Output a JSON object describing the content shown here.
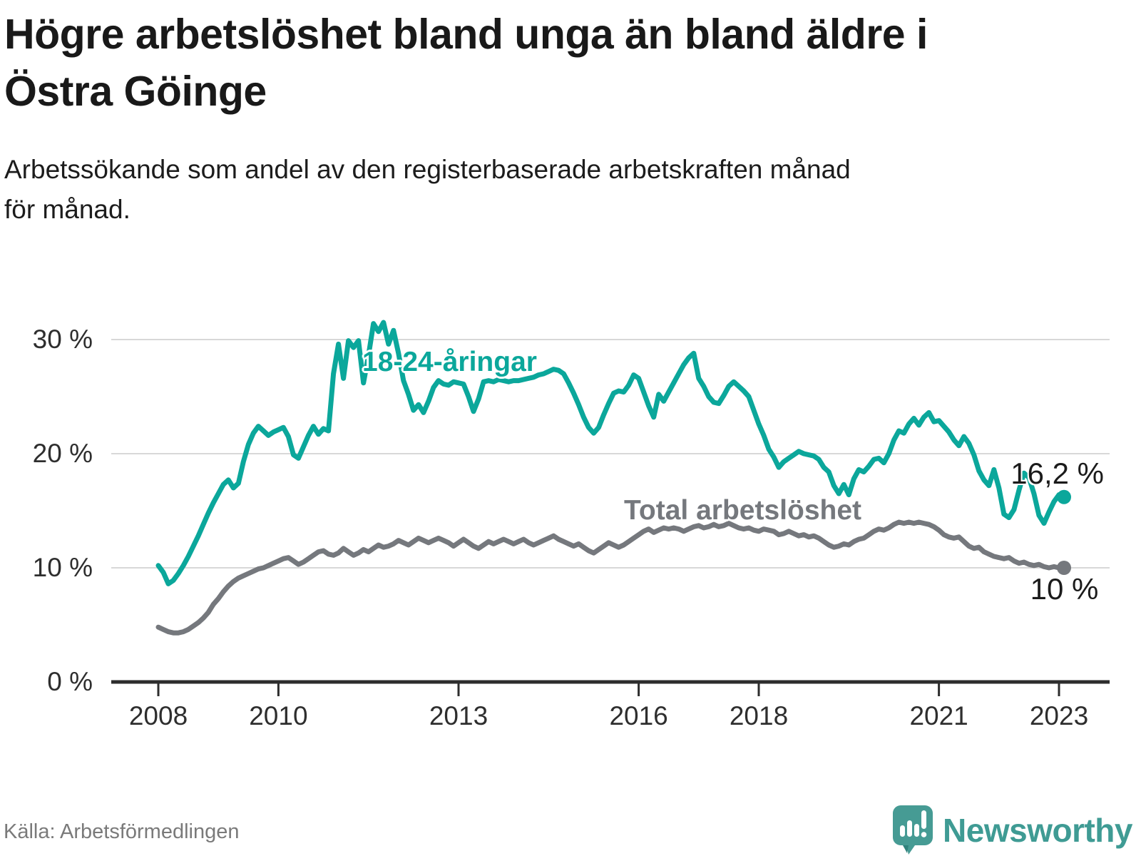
{
  "header": {
    "title": "Högre arbetslöshet bland unga än bland äldre i Östra Göinge",
    "title_lines": [
      "Högre arbetslöshet bland unga än bland äldre i",
      "Östra Göinge"
    ],
    "subtitle": "Arbetssökande som andel av den registerbaserade arbetskraften månad för månad.",
    "subtitle_lines": [
      "Arbetssökande som andel av den registerbaserade arbetskraften månad",
      "för månad."
    ]
  },
  "source": {
    "label": "Källa: Arbetsförmedlingen"
  },
  "branding": {
    "name": "Newsworthy",
    "icon": "speech-bubble-bar-chart-icon",
    "color": "#3F9B94"
  },
  "colors": {
    "youth_line": "#0BA79B",
    "total_line": "#75787D",
    "grid": "#D8D8D8",
    "axis": "#2D2D2D",
    "text": "#1A1A1A",
    "muted_text": "#7A7A7A"
  },
  "chart_data": {
    "type": "line",
    "unit": "%",
    "frequency": "monthly",
    "x_start": "2008-01",
    "x_end": "2023-02",
    "ylim": [
      0,
      33
    ],
    "yticks": [
      0,
      10,
      20,
      30
    ],
    "ytick_labels": [
      "0 %",
      "10 %",
      "20 %",
      "30 %"
    ],
    "xticks": [
      2008,
      2010,
      2013,
      2016,
      2018,
      2021,
      2023
    ],
    "xtick_labels": [
      "2008",
      "2010",
      "2013",
      "2016",
      "2018",
      "2021",
      "2023"
    ],
    "grid": "horizontal",
    "legend_position": "inline-labels",
    "series": [
      {
        "name": "18-24-åringar",
        "color": "#0BA79B",
        "end_label": "16,2 %",
        "end_value": 16.2,
        "values": [
          10.2,
          9.6,
          8.6,
          8.9,
          9.5,
          10.2,
          11.0,
          11.9,
          12.8,
          13.8,
          14.8,
          15.7,
          16.5,
          17.3,
          17.7,
          17.0,
          17.4,
          19.3,
          20.8,
          21.8,
          22.4,
          22.0,
          21.6,
          21.9,
          22.1,
          22.3,
          21.5,
          19.9,
          19.6,
          20.6,
          21.6,
          22.4,
          21.7,
          22.2,
          22.0,
          27.0,
          29.6,
          26.6,
          29.9,
          29.3,
          29.9,
          26.2,
          28.6,
          31.4,
          30.7,
          31.5,
          29.6,
          30.8,
          28.8,
          26.4,
          25.2,
          23.8,
          24.3,
          23.6,
          24.6,
          25.8,
          26.4,
          26.1,
          26.0,
          26.3,
          26.2,
          26.1,
          25.0,
          23.7,
          24.8,
          26.3,
          26.4,
          26.3,
          26.5,
          26.4,
          26.3,
          26.4,
          26.4,
          26.5,
          26.6,
          26.7,
          26.9,
          27.0,
          27.2,
          27.4,
          27.3,
          27.0,
          26.2,
          25.3,
          24.3,
          23.2,
          22.3,
          21.8,
          22.3,
          23.4,
          24.4,
          25.3,
          25.5,
          25.4,
          26.0,
          26.9,
          26.6,
          25.4,
          24.2,
          23.2,
          25.2,
          24.6,
          25.4,
          26.2,
          27.0,
          27.8,
          28.4,
          28.8,
          26.6,
          25.9,
          25.0,
          24.5,
          24.4,
          25.1,
          25.9,
          26.3,
          25.9,
          25.5,
          25.0,
          23.8,
          22.6,
          21.6,
          20.4,
          19.7,
          18.8,
          19.3,
          19.6,
          19.9,
          20.2,
          20.0,
          19.9,
          19.8,
          19.5,
          18.8,
          18.4,
          17.2,
          16.5,
          17.3,
          16.4,
          17.8,
          18.6,
          18.4,
          18.9,
          19.5,
          19.6,
          19.2,
          20.0,
          21.2,
          22.0,
          21.8,
          22.6,
          23.1,
          22.5,
          23.2,
          23.6,
          22.8,
          22.9,
          22.4,
          21.9,
          21.2,
          20.7,
          21.5,
          20.9,
          19.9,
          18.5,
          17.7,
          17.2,
          18.6,
          17.0,
          14.7,
          14.4,
          15.1,
          16.8,
          18.3,
          17.9,
          16.5,
          14.6,
          13.9,
          14.9,
          15.8,
          16.4,
          16.2
        ]
      },
      {
        "name": "Total arbetslöshet",
        "color": "#75787D",
        "end_label": "10 %",
        "end_value": 10.0,
        "values": [
          4.8,
          4.6,
          4.4,
          4.3,
          4.3,
          4.4,
          4.6,
          4.9,
          5.2,
          5.6,
          6.1,
          6.8,
          7.3,
          7.9,
          8.4,
          8.8,
          9.1,
          9.3,
          9.5,
          9.7,
          9.9,
          10.0,
          10.2,
          10.4,
          10.6,
          10.8,
          10.9,
          10.6,
          10.3,
          10.5,
          10.8,
          11.1,
          11.4,
          11.5,
          11.2,
          11.1,
          11.3,
          11.7,
          11.4,
          11.1,
          11.3,
          11.6,
          11.4,
          11.7,
          12.0,
          11.8,
          11.9,
          12.1,
          12.4,
          12.2,
          12.0,
          12.3,
          12.6,
          12.4,
          12.2,
          12.4,
          12.6,
          12.4,
          12.2,
          11.9,
          12.2,
          12.5,
          12.2,
          11.9,
          11.7,
          12.0,
          12.3,
          12.1,
          12.3,
          12.5,
          12.3,
          12.1,
          12.3,
          12.5,
          12.2,
          12.0,
          12.2,
          12.4,
          12.6,
          12.8,
          12.5,
          12.3,
          12.1,
          11.9,
          12.1,
          11.8,
          11.5,
          11.3,
          11.6,
          11.9,
          12.2,
          12.0,
          11.8,
          12.0,
          12.3,
          12.6,
          12.9,
          13.2,
          13.4,
          13.1,
          13.3,
          13.5,
          13.4,
          13.5,
          13.4,
          13.2,
          13.4,
          13.6,
          13.7,
          13.5,
          13.6,
          13.8,
          13.6,
          13.7,
          13.9,
          13.7,
          13.5,
          13.4,
          13.5,
          13.3,
          13.2,
          13.4,
          13.3,
          13.2,
          12.9,
          13.0,
          13.2,
          13.0,
          12.8,
          12.9,
          12.7,
          12.8,
          12.6,
          12.3,
          12.0,
          11.8,
          11.9,
          12.1,
          12.0,
          12.3,
          12.5,
          12.6,
          12.9,
          13.2,
          13.4,
          13.3,
          13.5,
          13.8,
          14.0,
          13.9,
          14.0,
          13.9,
          14.0,
          13.9,
          13.8,
          13.6,
          13.3,
          12.9,
          12.7,
          12.6,
          12.7,
          12.3,
          11.9,
          11.7,
          11.8,
          11.4,
          11.2,
          11.0,
          10.9,
          10.8,
          10.9,
          10.6,
          10.4,
          10.5,
          10.3,
          10.2,
          10.3,
          10.1,
          10.0,
          10.1,
          10.0,
          10.0
        ]
      }
    ]
  }
}
